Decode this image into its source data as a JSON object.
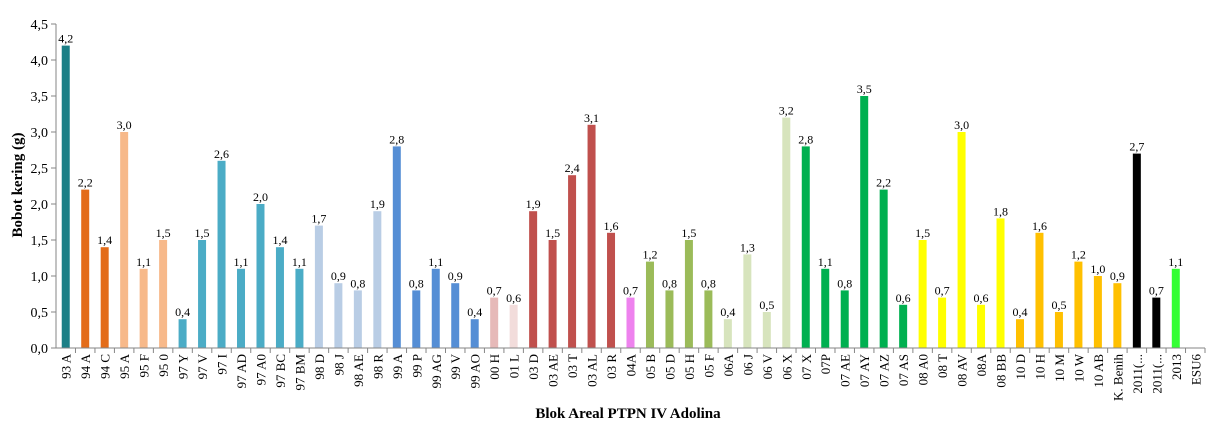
{
  "chart_data": {
    "type": "bar",
    "title": "",
    "xlabel": "Blok Areal PTPN IV Adolina",
    "ylabel": "Bobot kering (g)",
    "ylim": [
      0,
      4.5
    ],
    "yticks": [
      "0,0",
      "0,5",
      "1,0",
      "1,5",
      "2,0",
      "2,5",
      "3,0",
      "3,5",
      "4,0",
      "4,5"
    ],
    "grid": false,
    "categories": [
      "93 A",
      "94 A",
      "94 C",
      "95 A",
      "95 F",
      "95 0",
      "97 Y",
      "97 V",
      "97 I",
      "97 AD",
      "97 A0",
      "97 BC",
      "97 BM",
      "98 D",
      "98 J",
      "98 AE",
      "98 R",
      "99 A",
      "99 P",
      "99 AG",
      "99 V",
      "99 AO",
      "00 H",
      "01 L",
      "03 D",
      "03 AE",
      "03 T",
      "03 AL",
      "03 R",
      "04A",
      "05 B",
      "05 D",
      "05 H",
      "05 F",
      "06A",
      "06 J",
      "06 V",
      "06 X",
      "07 X",
      "07P",
      "07 AE",
      "07 AY",
      "07 AZ",
      "07 AS",
      "08 A0",
      "08 T",
      "08 AV",
      "08A",
      "08 BB",
      "10 D",
      "10 H",
      "10 M",
      "10 W",
      "10 AB",
      "K. Benih",
      "2011(...",
      "2011(...",
      "2013",
      "ESU6"
    ],
    "values": [
      4.2,
      2.2,
      1.4,
      3.0,
      1.1,
      1.5,
      0.4,
      1.5,
      2.6,
      1.1,
      2.0,
      1.4,
      1.1,
      1.7,
      0.9,
      0.8,
      1.9,
      2.8,
      0.8,
      1.1,
      0.9,
      0.4,
      0.7,
      0.6,
      1.9,
      1.5,
      2.4,
      3.1,
      1.6,
      0.7,
      1.2,
      0.8,
      1.5,
      0.8,
      0.4,
      1.3,
      0.5,
      3.2,
      2.8,
      1.1,
      0.8,
      3.5,
      2.2,
      0.6,
      1.5,
      0.7,
      3.0,
      0.6,
      1.8,
      0.4,
      1.6,
      0.5,
      1.2,
      1.0,
      0.9,
      2.7,
      0.7,
      1.1,
      null
    ],
    "data_labels": [
      "4,2",
      "2,2",
      "1,4",
      "3,0",
      "1,1",
      "1,5",
      "0,4",
      "1,5",
      "2,6",
      "1,1",
      "2,0",
      "1,4",
      "1,1",
      "1,7",
      "0,9",
      "0,8",
      "1,9",
      "2,8",
      "0,8",
      "1,1",
      "0,9",
      "0,4",
      "0,7",
      "0,6",
      "1,9",
      "1,5",
      "2,4",
      "3,1",
      "1,6",
      "0,7",
      "1,2",
      "0,8",
      "1,5",
      "0,8",
      "0,4",
      "1,3",
      "0,5",
      "3,2",
      "2,8",
      "1,1",
      "0,8",
      "3,5",
      "2,2",
      "0,6",
      "1,5",
      "0,7",
      "3,0",
      "0,6",
      "1,8",
      "0,4",
      "1,6",
      "0,5",
      "1,2",
      "1,0",
      "0,9",
      "2,7",
      "0,7",
      "1,1",
      ""
    ],
    "colors": [
      "#1b7f86",
      "#e36c1a",
      "#e36c1a",
      "#f7b98a",
      "#f7b98a",
      "#f7b98a",
      "#4bacc6",
      "#4bacc6",
      "#4bacc6",
      "#4bacc6",
      "#4bacc6",
      "#4bacc6",
      "#4bacc6",
      "#b9cde5",
      "#b9cde5",
      "#b9cde5",
      "#b9cde5",
      "#558ed5",
      "#558ed5",
      "#558ed5",
      "#558ed5",
      "#558ed5",
      "#e6b9b8",
      "#f2dcdb",
      "#c0504d",
      "#c0504d",
      "#c0504d",
      "#c0504d",
      "#c0504d",
      "#ee82ee",
      "#9bbb59",
      "#9bbb59",
      "#9bbb59",
      "#9bbb59",
      "#d7e4bd",
      "#d7e4bd",
      "#d7e4bd",
      "#d7e4bd",
      "#00b050",
      "#00b050",
      "#00b050",
      "#00b050",
      "#00b050",
      "#00b050",
      "#ffff00",
      "#ffff00",
      "#ffff00",
      "#ffff00",
      "#ffff00",
      "#ffc000",
      "#ffc000",
      "#ffc000",
      "#ffc000",
      "#ffc000",
      "#ffc000",
      "#000000",
      "#000000",
      "#33ff33",
      "#ffffff"
    ]
  }
}
